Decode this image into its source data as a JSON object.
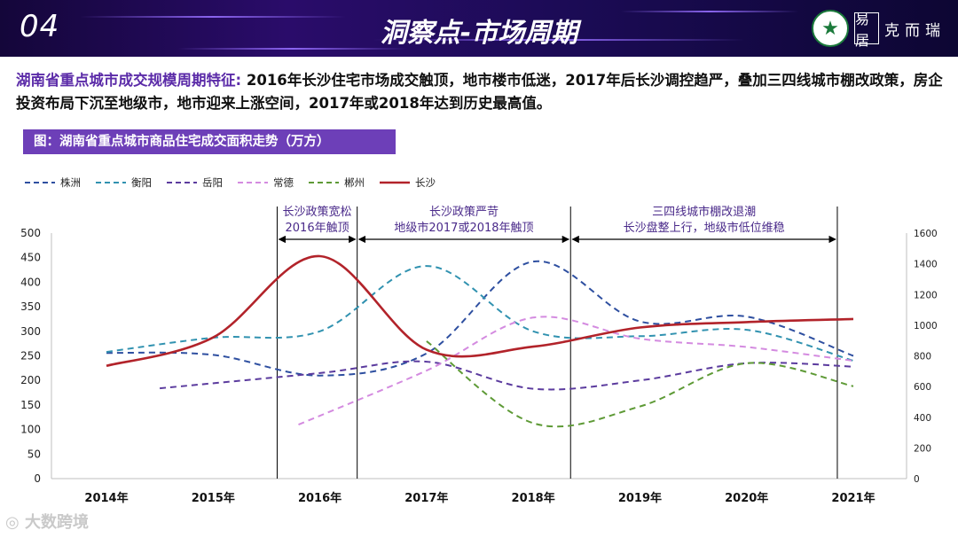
{
  "header": {
    "section_number": "04",
    "title": "洞察点-市场周期",
    "brand_text": "克而瑞",
    "brand_mark": "易居",
    "badge_icon": "star-emblem"
  },
  "description": {
    "lead": "湖南省重点城市成交规模周期特征:",
    "body": "  2016年长沙住宅市场成交触顶，地市楼市低迷，2017年后长沙调控趋严，叠加三四线城市棚改政策，房企投资布局下沉至地级市，地市迎来上涨空间，2017年或2018年达到历史最高值。"
  },
  "figure_caption": "图：湖南省重点城市商品住宅成交面积走势（万方）",
  "watermark": "大数跨境",
  "chart_data": {
    "type": "line",
    "smooth": true,
    "x": [
      "2014年",
      "2015年",
      "2016年",
      "2017年",
      "2018年",
      "2019年",
      "2020年",
      "2021年"
    ],
    "y_left": {
      "range": [
        0,
        500
      ],
      "ticks": [
        0,
        50,
        100,
        150,
        200,
        250,
        300,
        350,
        400,
        450,
        500
      ]
    },
    "y_right": {
      "range": [
        0,
        1600
      ],
      "ticks": [
        0,
        200,
        400,
        600,
        800,
        1000,
        1200,
        1400,
        1600
      ]
    },
    "series": [
      {
        "name": "株洲",
        "axis": "left",
        "style": "dashed",
        "color": "#2e4fa0",
        "points": [
          [
            0,
            256
          ],
          [
            1,
            252
          ],
          [
            2,
            210
          ],
          [
            3,
            255
          ],
          [
            4,
            442
          ],
          [
            5,
            320
          ],
          [
            6,
            330
          ],
          [
            7,
            250
          ]
        ]
      },
      {
        "name": "衡阳",
        "axis": "left",
        "style": "dashed",
        "color": "#3192b0",
        "points": [
          [
            0,
            258
          ],
          [
            1,
            287
          ],
          [
            2,
            300
          ],
          [
            3,
            433
          ],
          [
            4,
            300
          ],
          [
            5,
            290
          ],
          [
            6,
            303
          ],
          [
            7,
            240
          ]
        ]
      },
      {
        "name": "岳阳",
        "axis": "left",
        "style": "dashed",
        "color": "#5b3b9e",
        "points": [
          [
            0.5,
            184
          ],
          [
            2,
            215
          ],
          [
            3,
            238
          ],
          [
            4,
            183
          ],
          [
            5,
            200
          ],
          [
            6,
            235
          ],
          [
            7,
            228
          ]
        ]
      },
      {
        "name": "常德",
        "axis": "left",
        "style": "dashed",
        "color": "#d48be0",
        "points": [
          [
            1.8,
            110
          ],
          [
            3,
            220
          ],
          [
            4,
            328
          ],
          [
            5,
            285
          ],
          [
            6,
            268
          ],
          [
            7,
            240
          ]
        ]
      },
      {
        "name": "郴州",
        "axis": "left",
        "style": "dashed",
        "color": "#5e9a36",
        "points": [
          [
            3,
            280
          ],
          [
            4,
            113
          ],
          [
            5,
            147
          ],
          [
            6,
            235
          ],
          [
            7,
            188
          ]
        ]
      },
      {
        "name": "长沙",
        "axis": "right",
        "style": "solid",
        "color": "#b2232a",
        "points": [
          [
            0,
            735
          ],
          [
            1,
            920
          ],
          [
            2,
            1450
          ],
          [
            3,
            840
          ],
          [
            4,
            860
          ],
          [
            5,
            985
          ],
          [
            6,
            1020
          ],
          [
            7,
            1040
          ]
        ]
      }
    ],
    "annotations": [
      {
        "from": 1.6,
        "to": 2.35,
        "lines": [
          "长沙政策宽松",
          "2016年触顶"
        ]
      },
      {
        "from": 2.35,
        "to": 4.35,
        "lines": [
          "长沙政策严苛",
          "地级市2017或2018年触顶"
        ]
      },
      {
        "from": 4.35,
        "to": 6.85,
        "lines": [
          "三四线城市棚改退潮",
          "长沙盘整上行，地级市低位维稳"
        ]
      }
    ]
  }
}
